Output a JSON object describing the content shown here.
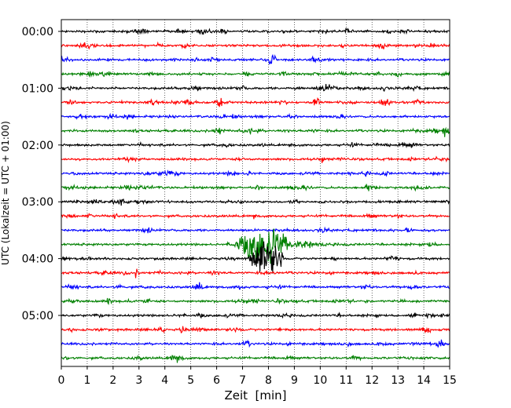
{
  "chart_data": {
    "type": "line",
    "title": "",
    "xlabel": "Zeit  [min]",
    "ylabel": "UTC (Lokalzeit = UTC + 01:00)",
    "xlim": [
      0,
      15
    ],
    "x_ticks": [
      "0",
      "1",
      "2",
      "3",
      "4",
      "5",
      "6",
      "7",
      "8",
      "9",
      "10",
      "11",
      "12",
      "13",
      "14",
      "15"
    ],
    "y_ticks": [
      {
        "label": "00:00",
        "row": 0
      },
      {
        "label": "01:00",
        "row": 4
      },
      {
        "label": "02:00",
        "row": 8
      },
      {
        "label": "03:00",
        "row": 12
      },
      {
        "label": "04:00",
        "row": 16
      },
      {
        "label": "05:00",
        "row": 20
      }
    ],
    "grid": "vertical-dotted",
    "rows_per_hour": 4,
    "row_minutes": 15,
    "row_count": 24,
    "row_colors": [
      "#000000",
      "#ff0000",
      "#0000ff",
      "#008000"
    ],
    "events": [
      {
        "row": 15,
        "start_min": 6.6,
        "peak_min": 7.8,
        "end_min": 12.0,
        "amplitude": "large"
      },
      {
        "row": 16,
        "start_min": 7.2,
        "peak_min": 7.8,
        "end_min": 8.6,
        "amplitude": "large"
      },
      {
        "row": 5,
        "start_min": 9.7,
        "peak_min": 9.8,
        "end_min": 10.0,
        "amplitude": "medium"
      },
      {
        "row": 5,
        "start_min": 12.3,
        "peak_min": 12.4,
        "end_min": 12.7,
        "amplitude": "medium"
      },
      {
        "row": 5,
        "start_min": 6.0,
        "peak_min": 6.1,
        "end_min": 6.7,
        "amplitude": "medium"
      },
      {
        "row": 11,
        "start_min": 11.7,
        "peak_min": 11.9,
        "end_min": 12.3,
        "amplitude": "medium"
      },
      {
        "row": 4,
        "start_min": 12.3,
        "peak_min": 12.4,
        "end_min": 12.6,
        "amplitude": "medium"
      },
      {
        "row": 2,
        "start_min": 8.0,
        "peak_min": 8.1,
        "end_min": 8.3,
        "amplitude": "medium"
      },
      {
        "row": 7,
        "start_min": 14.7,
        "peak_min": 14.8,
        "end_min": 15.0,
        "amplitude": "medium"
      }
    ]
  }
}
